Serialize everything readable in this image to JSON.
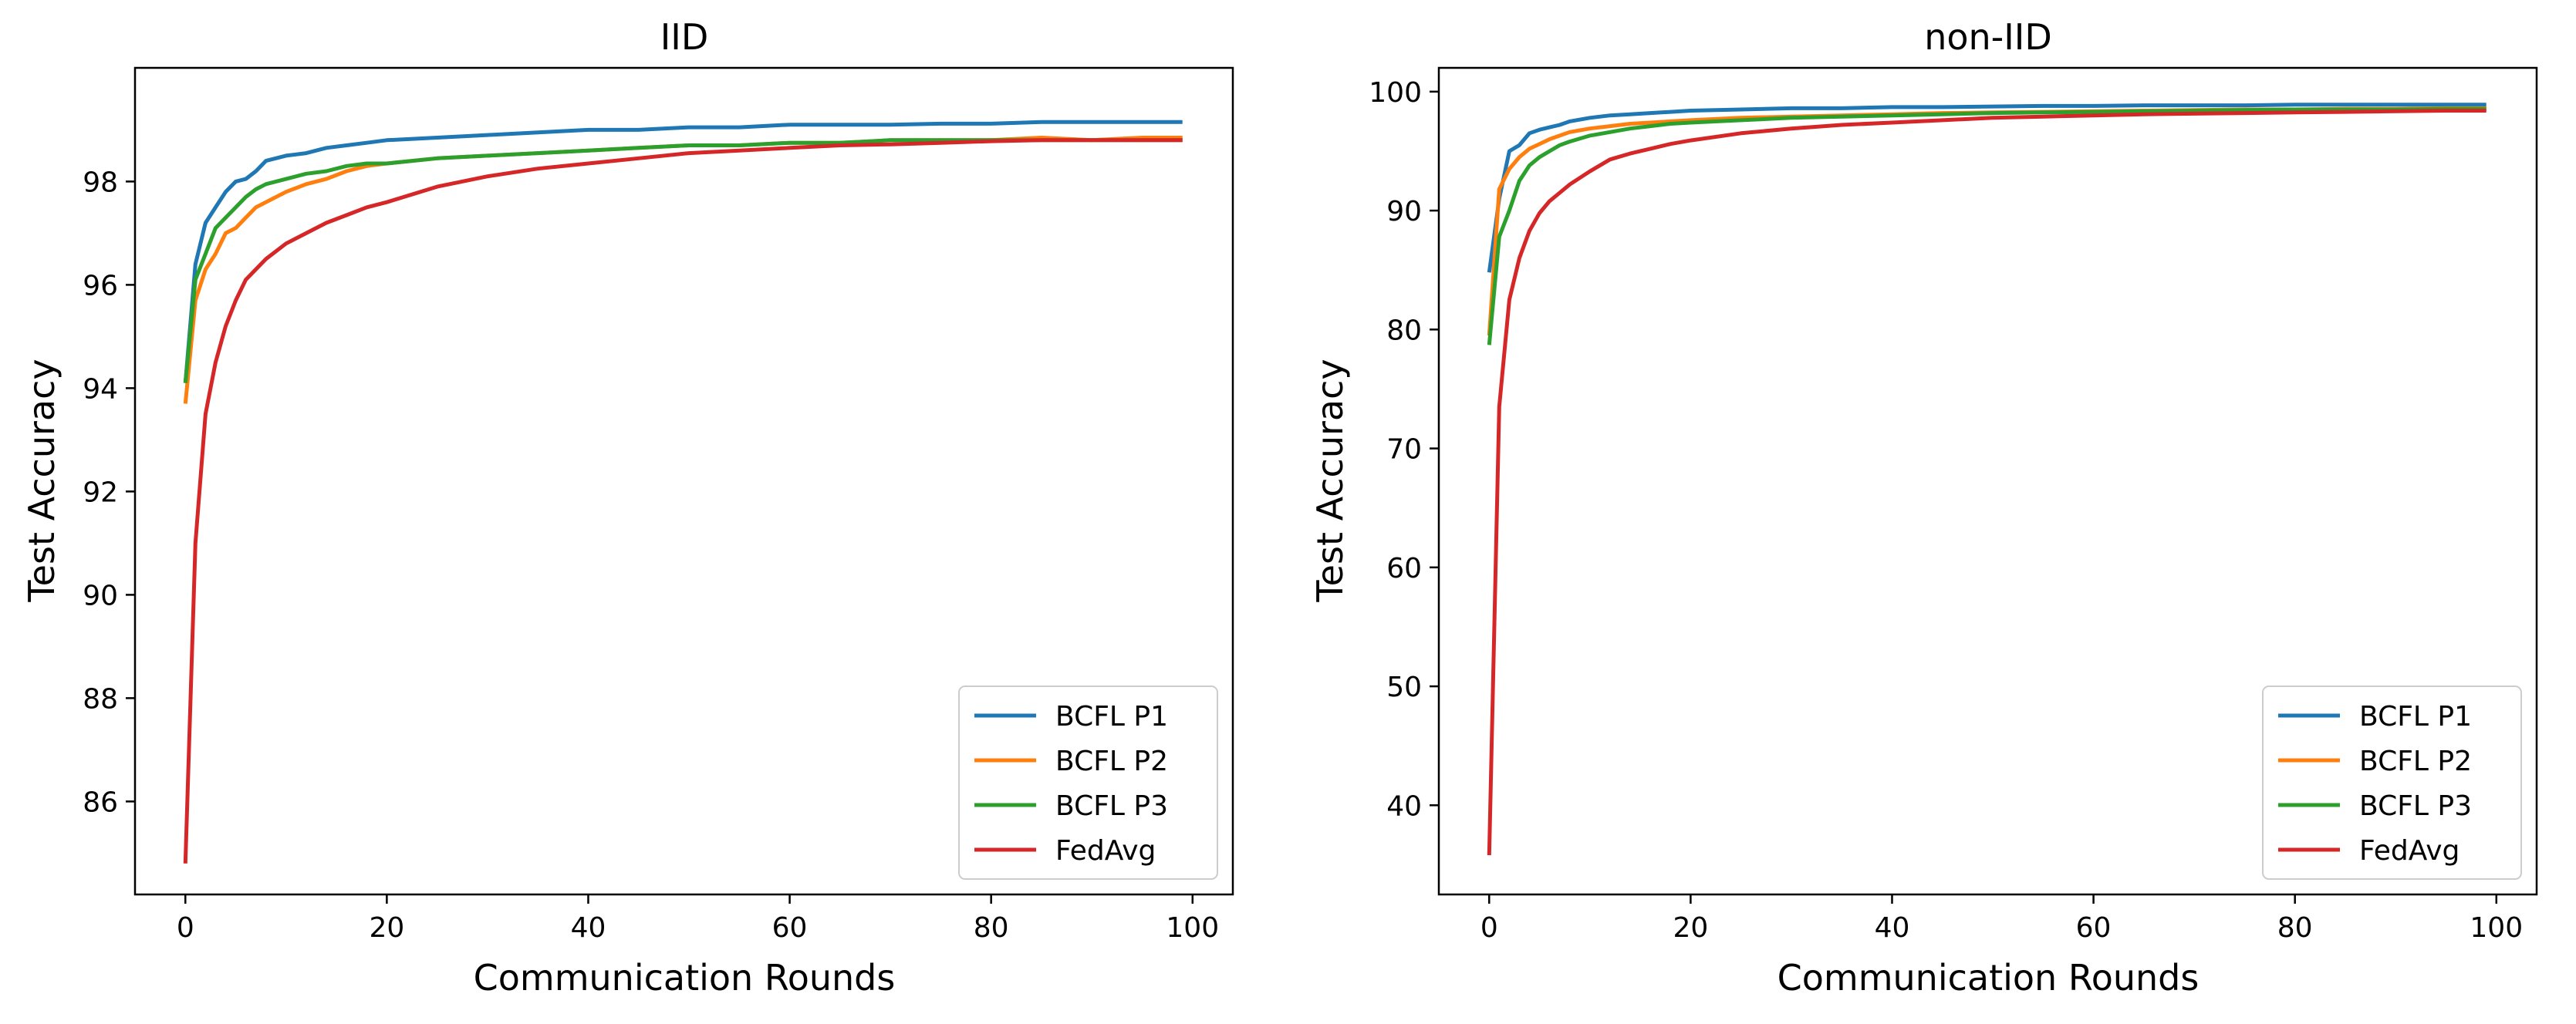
{
  "figure": {
    "description": "Test accuracy vs communication rounds"
  },
  "colors": {
    "BCFL P1": "#1f77b4",
    "BCFL P2": "#ff7f0e",
    "BCFL P3": "#2ca02c",
    "FedAvg": "#d62728"
  },
  "chart_data": [
    {
      "type": "line",
      "title": "IID",
      "xlabel": "Communication Rounds",
      "ylabel": "Test Accuracy",
      "xlim": [
        -5,
        104
      ],
      "ylim": [
        84.2,
        100.2
      ],
      "xticks": [
        0,
        20,
        40,
        60,
        80,
        100
      ],
      "yticks": [
        86,
        88,
        90,
        92,
        94,
        96,
        98
      ],
      "legend": "lower-right",
      "x": [
        0,
        1,
        2,
        3,
        4,
        5,
        6,
        7,
        8,
        10,
        12,
        14,
        16,
        18,
        20,
        25,
        30,
        35,
        40,
        45,
        50,
        55,
        60,
        65,
        70,
        75,
        80,
        85,
        90,
        95,
        99
      ],
      "series": [
        {
          "name": "BCFL P1",
          "values": [
            94.1,
            96.4,
            97.2,
            97.5,
            97.8,
            98.0,
            98.05,
            98.2,
            98.4,
            98.5,
            98.55,
            98.65,
            98.7,
            98.75,
            98.8,
            98.85,
            98.9,
            98.95,
            99.0,
            99.0,
            99.05,
            99.05,
            99.1,
            99.1,
            99.1,
            99.12,
            99.12,
            99.15,
            99.15,
            99.15,
            99.15
          ]
        },
        {
          "name": "BCFL P2",
          "values": [
            93.7,
            95.7,
            96.3,
            96.6,
            97.0,
            97.1,
            97.3,
            97.5,
            97.6,
            97.8,
            97.95,
            98.05,
            98.2,
            98.3,
            98.35,
            98.45,
            98.5,
            98.55,
            98.6,
            98.65,
            98.7,
            98.7,
            98.75,
            98.75,
            98.8,
            98.8,
            98.8,
            98.85,
            98.8,
            98.85,
            98.85
          ]
        },
        {
          "name": "BCFL P3",
          "values": [
            94.1,
            96.1,
            96.6,
            97.1,
            97.3,
            97.5,
            97.7,
            97.85,
            97.95,
            98.05,
            98.15,
            98.2,
            98.3,
            98.35,
            98.35,
            98.45,
            98.5,
            98.55,
            98.6,
            98.65,
            98.7,
            98.7,
            98.75,
            98.75,
            98.8,
            98.8,
            98.8,
            98.8,
            98.8,
            98.8,
            98.8
          ]
        },
        {
          "name": "FedAvg",
          "values": [
            84.8,
            91.0,
            93.5,
            94.5,
            95.2,
            95.7,
            96.1,
            96.3,
            96.5,
            96.8,
            97.0,
            97.2,
            97.35,
            97.5,
            97.6,
            97.9,
            98.1,
            98.25,
            98.35,
            98.45,
            98.55,
            98.6,
            98.65,
            98.7,
            98.72,
            98.75,
            98.78,
            98.8,
            98.8,
            98.8,
            98.8
          ]
        }
      ]
    },
    {
      "type": "line",
      "title": "non-IID",
      "xlabel": "Communication Rounds",
      "ylabel": "Test Accuracy",
      "xlim": [
        -5,
        104
      ],
      "ylim": [
        32.5,
        102.0
      ],
      "xticks": [
        0,
        20,
        40,
        60,
        80,
        100
      ],
      "yticks": [
        40,
        50,
        60,
        70,
        80,
        90,
        100
      ],
      "legend": "lower-right",
      "x": [
        0,
        1,
        2,
        3,
        4,
        5,
        6,
        7,
        8,
        10,
        12,
        14,
        16,
        18,
        20,
        25,
        30,
        35,
        40,
        45,
        50,
        55,
        60,
        65,
        70,
        75,
        80,
        85,
        90,
        95,
        99
      ],
      "series": [
        {
          "name": "BCFL P1",
          "values": [
            84.8,
            91.0,
            95.0,
            95.5,
            96.5,
            96.8,
            97.0,
            97.2,
            97.5,
            97.8,
            98.0,
            98.1,
            98.2,
            98.3,
            98.4,
            98.5,
            98.6,
            98.6,
            98.7,
            98.7,
            98.75,
            98.8,
            98.8,
            98.85,
            98.85,
            98.85,
            98.9,
            98.9,
            98.9,
            98.9,
            98.9
          ]
        },
        {
          "name": "BCFL P2",
          "values": [
            79.5,
            91.8,
            93.5,
            94.5,
            95.2,
            95.6,
            96.0,
            96.3,
            96.6,
            96.9,
            97.1,
            97.3,
            97.4,
            97.5,
            97.6,
            97.8,
            97.9,
            98.0,
            98.1,
            98.2,
            98.25,
            98.3,
            98.35,
            98.4,
            98.45,
            98.5,
            98.5,
            98.55,
            98.55,
            98.6,
            98.6
          ]
        },
        {
          "name": "BCFL P3",
          "values": [
            78.7,
            87.8,
            90.0,
            92.5,
            93.8,
            94.5,
            95.0,
            95.5,
            95.8,
            96.3,
            96.6,
            96.9,
            97.1,
            97.3,
            97.4,
            97.6,
            97.8,
            97.9,
            98.0,
            98.1,
            98.2,
            98.25,
            98.3,
            98.35,
            98.4,
            98.45,
            98.5,
            98.5,
            98.5,
            98.55,
            98.55
          ]
        },
        {
          "name": "FedAvg",
          "values": [
            35.8,
            73.5,
            82.5,
            86.0,
            88.3,
            89.8,
            90.8,
            91.5,
            92.2,
            93.3,
            94.3,
            94.8,
            95.2,
            95.6,
            95.9,
            96.5,
            96.9,
            97.2,
            97.4,
            97.6,
            97.8,
            97.9,
            98.0,
            98.1,
            98.15,
            98.2,
            98.25,
            98.3,
            98.35,
            98.4,
            98.4
          ]
        }
      ]
    }
  ]
}
